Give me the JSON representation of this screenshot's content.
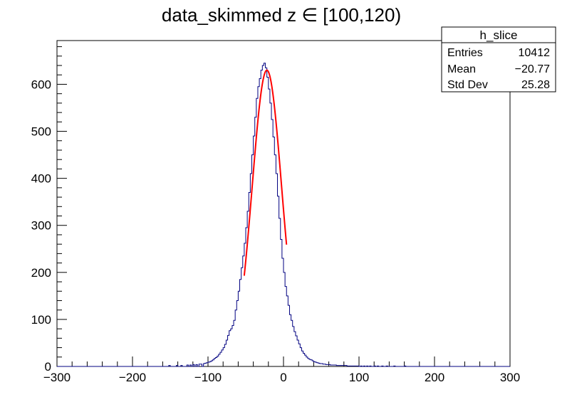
{
  "chart_data": {
    "type": "histogram",
    "title": "data_skimmed z  ∈ [100,120)",
    "xlabel": "",
    "ylabel": "",
    "xlim": [
      -300,
      300
    ],
    "ylim": [
      0,
      693
    ],
    "bin_width": 2,
    "x_ticks": [
      -300,
      -200,
      -100,
      0,
      100,
      200,
      300
    ],
    "x_tick_labels": [
      "−300",
      "−200",
      "−100",
      "0",
      "100",
      "200",
      "300"
    ],
    "y_ticks": [
      0,
      100,
      200,
      300,
      400,
      500,
      600
    ],
    "y_tick_labels": [
      "0",
      "100",
      "200",
      "300",
      "400",
      "500",
      "600"
    ],
    "grid": false,
    "legend": "none",
    "histogram_color": "#000080",
    "fit_color": "#ff0000",
    "histogram": {
      "name": "h_slice",
      "bin_centers": [
        -151,
        -141,
        -135,
        -127,
        -123,
        -119,
        -115,
        -111,
        -109,
        -105,
        -103,
        -101,
        -99,
        -97,
        -95,
        -93,
        -91,
        -89,
        -87,
        -85,
        -83,
        -81,
        -79,
        -77,
        -75,
        -73,
        -71,
        -69,
        -67,
        -65,
        -63,
        -61,
        -59,
        -57,
        -55,
        -53,
        -51,
        -49,
        -47,
        -45,
        -43,
        -41,
        -39,
        -37,
        -35,
        -33,
        -31,
        -29,
        -27,
        -25,
        -23,
        -21,
        -19,
        -17,
        -15,
        -13,
        -11,
        -9,
        -7,
        -5,
        -3,
        -1,
        1,
        3,
        5,
        7,
        9,
        11,
        13,
        15,
        17,
        19,
        21,
        23,
        25,
        27,
        29,
        31,
        33,
        35,
        37,
        39,
        41,
        43,
        45,
        47,
        49,
        51,
        53,
        55,
        57,
        59,
        61,
        63,
        65,
        67,
        69,
        71,
        73,
        75,
        77,
        79,
        81,
        83,
        85,
        87,
        89,
        91,
        93,
        95,
        97,
        99,
        103,
        107,
        111,
        115,
        121,
        125,
        131,
        137,
        147,
        161
      ],
      "counts": [
        2,
        2,
        2,
        3,
        3,
        4,
        4,
        5,
        5,
        6,
        7,
        8,
        9,
        10,
        12,
        14,
        17,
        19,
        22,
        26,
        30,
        35,
        40,
        47,
        56,
        66,
        76,
        80,
        87,
        98,
        120,
        140,
        160,
        185,
        210,
        235,
        262,
        295,
        330,
        370,
        410,
        450,
        490,
        530,
        570,
        595,
        612,
        630,
        640,
        645,
        635,
        615,
        590,
        560,
        525,
        488,
        450,
        410,
        362,
        315,
        270,
        230,
        200,
        170,
        150,
        130,
        110,
        98,
        85,
        74,
        65,
        56,
        48,
        40,
        33,
        28,
        24,
        20,
        17,
        15,
        14,
        12,
        10,
        9,
        8,
        7,
        6,
        6,
        5,
        5,
        4,
        4,
        4,
        3,
        3,
        3,
        3,
        2,
        2,
        2,
        2,
        2,
        2,
        2,
        1,
        1,
        1,
        1,
        1,
        1,
        1,
        1,
        1,
        1,
        1,
        1,
        1,
        1,
        1,
        1,
        1,
        1,
        1,
        1
      ]
    },
    "fit": {
      "type": "gaussian",
      "x_range": [
        -52,
        4
      ],
      "constant": 630,
      "mean": -22,
      "sigma": 19.5
    },
    "stats_box": {
      "title": "h_slice",
      "rows": [
        {
          "label": "Entries",
          "value": "10412"
        },
        {
          "label": "Mean",
          "value": "−20.77"
        },
        {
          "label": "Std Dev",
          "value": "25.28"
        }
      ]
    }
  }
}
